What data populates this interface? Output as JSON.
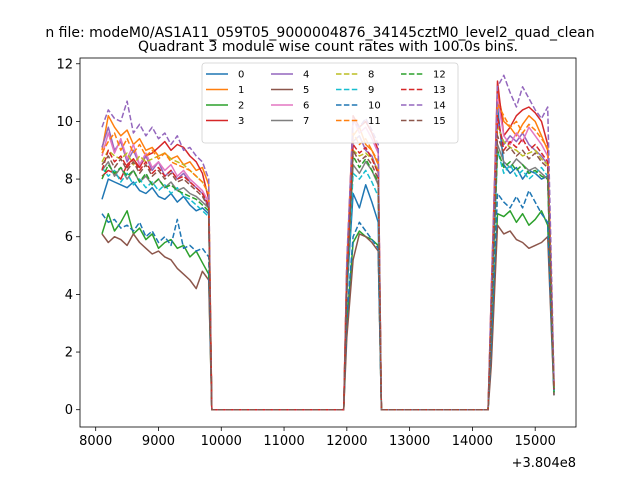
{
  "chart_data": {
    "type": "line",
    "suptitle": "n file: modeM0/AS1A11_059T05_9000004876_34145cztM0_level2_quad_clean",
    "title": "Quadrant 3 module wise count rates with 100.0s bins.",
    "xlabel": "",
    "ylabel": "",
    "x_offset_label": "+3.804e8",
    "xlim": [
      7750,
      15650
    ],
    "ylim": [
      -0.6,
      12.2
    ],
    "xticks": [
      8000,
      9000,
      10000,
      11000,
      12000,
      13000,
      14000,
      15000
    ],
    "yticks": [
      0,
      2,
      4,
      6,
      8,
      10,
      12
    ],
    "grid": false,
    "legend": {
      "placement": "top-center",
      "columns": 4
    },
    "x": [
      8100,
      8200,
      8300,
      8400,
      8500,
      8600,
      8700,
      8800,
      8900,
      9000,
      9100,
      9200,
      9300,
      9400,
      9500,
      9600,
      9700,
      9800,
      9850,
      11950,
      12000,
      12100,
      12200,
      12300,
      12400,
      12500,
      12550,
      14250,
      14300,
      14400,
      14500,
      14600,
      14700,
      14800,
      14900,
      15000,
      15100,
      15200,
      15300
    ],
    "series": [
      {
        "name": "0",
        "color": "#1f77b4",
        "style": "solid",
        "values": [
          7.3,
          8.0,
          7.9,
          7.8,
          7.7,
          7.9,
          7.6,
          7.5,
          7.7,
          7.4,
          7.3,
          7.5,
          7.2,
          7.4,
          7.1,
          6.9,
          7.0,
          6.8,
          0,
          0,
          4.0,
          7.5,
          7.0,
          7.8,
          7.2,
          6.5,
          0,
          0,
          3.0,
          10.5,
          8.5,
          8.2,
          8.4,
          8.0,
          8.3,
          8.2,
          8.0,
          8.1,
          0.5
        ]
      },
      {
        "name": "1",
        "color": "#ff7f0e",
        "style": "solid",
        "values": [
          9.0,
          10.2,
          9.8,
          9.5,
          9.7,
          9.2,
          9.4,
          9.0,
          9.1,
          8.8,
          8.9,
          8.7,
          8.8,
          8.5,
          8.6,
          8.3,
          8.4,
          7.8,
          0,
          0,
          5.0,
          9.5,
          9.8,
          9.2,
          9.0,
          8.5,
          0,
          0,
          3.5,
          11.0,
          10.0,
          9.8,
          9.5,
          9.9,
          10.2,
          10.0,
          9.5,
          9.0,
          0.8
        ]
      },
      {
        "name": "2",
        "color": "#2ca02c",
        "style": "solid",
        "values": [
          6.1,
          6.8,
          6.2,
          6.5,
          6.9,
          6.1,
          6.3,
          5.9,
          6.1,
          5.6,
          5.8,
          5.9,
          5.6,
          5.7,
          5.3,
          5.5,
          5.1,
          4.7,
          0,
          0,
          3.0,
          5.8,
          6.2,
          6.0,
          5.9,
          5.7,
          0,
          0,
          2.0,
          6.8,
          6.7,
          6.9,
          6.5,
          6.8,
          6.4,
          6.6,
          6.9,
          6.4,
          0.6
        ]
      },
      {
        "name": "3",
        "color": "#d62728",
        "style": "solid",
        "values": [
          8.1,
          8.3,
          8.2,
          8.0,
          8.5,
          8.7,
          8.4,
          8.8,
          8.9,
          9.1,
          9.3,
          9.0,
          9.2,
          9.1,
          8.8,
          8.6,
          8.2,
          7.3,
          0,
          0,
          5.0,
          10.2,
          9.8,
          10.0,
          9.6,
          9.0,
          0,
          0,
          4.0,
          11.4,
          9.5,
          9.8,
          10.2,
          10.4,
          10.5,
          10.3,
          10.0,
          9.2,
          0.9
        ]
      },
      {
        "name": "4",
        "color": "#9467bd",
        "style": "solid",
        "values": [
          9.1,
          9.8,
          9.0,
          9.3,
          8.6,
          9.0,
          8.5,
          8.8,
          8.3,
          8.6,
          8.1,
          8.3,
          8.0,
          8.2,
          7.9,
          7.7,
          7.5,
          7.0,
          0,
          0,
          4.5,
          9.3,
          9.5,
          9.0,
          8.8,
          8.2,
          0,
          0,
          3.5,
          10.0,
          9.2,
          9.5,
          9.3,
          9.6,
          9.2,
          9.0,
          8.8,
          8.5,
          0.7
        ]
      },
      {
        "name": "5",
        "color": "#8c564b",
        "style": "solid",
        "values": [
          6.1,
          5.8,
          6.0,
          5.9,
          5.7,
          6.1,
          5.8,
          5.6,
          5.4,
          5.5,
          5.3,
          5.2,
          4.9,
          4.7,
          4.5,
          4.2,
          4.8,
          4.5,
          0,
          0,
          2.5,
          5.2,
          6.1,
          6.0,
          5.8,
          5.5,
          0,
          0,
          1.5,
          6.4,
          6.1,
          6.2,
          5.9,
          5.8,
          5.6,
          5.7,
          5.8,
          6.0,
          0.5
        ]
      },
      {
        "name": "6",
        "color": "#e377c2",
        "style": "solid",
        "values": [
          8.8,
          9.6,
          8.9,
          9.4,
          8.7,
          9.2,
          8.5,
          8.9,
          8.4,
          8.6,
          8.3,
          8.5,
          8.1,
          8.3,
          8.0,
          7.8,
          7.6,
          7.2,
          0,
          0,
          4.5,
          10.1,
          9.6,
          9.8,
          9.4,
          8.9,
          0,
          0,
          3.5,
          10.8,
          9.5,
          9.2,
          9.6,
          9.3,
          9.8,
          9.5,
          9.2,
          8.8,
          0.8
        ]
      },
      {
        "name": "7",
        "color": "#7f7f7f",
        "style": "solid",
        "values": [
          8.3,
          8.6,
          8.1,
          8.4,
          8.0,
          8.3,
          7.9,
          8.1,
          7.8,
          8.0,
          7.7,
          7.9,
          7.6,
          7.7,
          7.5,
          7.4,
          7.2,
          7.0,
          0,
          0,
          4.2,
          8.5,
          8.2,
          8.6,
          8.3,
          7.8,
          0,
          0,
          3.0,
          9.2,
          8.6,
          8.4,
          8.7,
          8.5,
          8.3,
          8.4,
          8.2,
          8.0,
          0.6
        ]
      },
      {
        "name": "8",
        "color": "#bcbd22",
        "style": "dashed",
        "values": [
          8.6,
          9.0,
          8.8,
          8.7,
          8.9,
          8.5,
          8.8,
          8.6,
          8.7,
          8.8,
          8.9,
          8.7,
          8.6,
          8.5,
          8.3,
          8.1,
          7.9,
          7.5,
          0,
          0,
          4.5,
          9.0,
          8.8,
          8.9,
          8.7,
          8.3,
          0,
          0,
          3.2,
          9.8,
          9.3,
          9.1,
          9.0,
          8.8,
          8.9,
          9.0,
          8.7,
          8.5,
          0.7
        ]
      },
      {
        "name": "9",
        "color": "#17becf",
        "style": "dashed",
        "values": [
          8.4,
          8.1,
          8.3,
          7.9,
          8.2,
          7.8,
          8.0,
          7.7,
          7.9,
          7.6,
          7.8,
          7.5,
          7.7,
          7.4,
          7.3,
          7.1,
          6.9,
          6.7,
          0,
          0,
          4.0,
          8.2,
          8.0,
          8.3,
          7.9,
          7.4,
          0,
          0,
          2.9,
          9.0,
          8.2,
          8.5,
          8.1,
          8.3,
          8.0,
          8.2,
          8.4,
          8.1,
          0.6
        ]
      },
      {
        "name": "10",
        "color": "#1f77b4",
        "style": "dashed",
        "values": [
          6.8,
          6.5,
          6.6,
          6.3,
          6.4,
          6.2,
          6.5,
          6.0,
          6.2,
          5.8,
          6.0,
          5.7,
          6.6,
          5.6,
          5.7,
          5.5,
          5.6,
          5.3,
          0,
          0,
          3.2,
          6.0,
          6.5,
          6.2,
          5.9,
          5.6,
          0,
          0,
          2.2,
          7.5,
          7.2,
          7.0,
          7.4,
          7.0,
          7.6,
          7.2,
          6.8,
          6.5,
          0.6
        ]
      },
      {
        "name": "11",
        "color": "#ff7f0e",
        "style": "dashed",
        "values": [
          8.9,
          9.3,
          9.6,
          9.0,
          9.4,
          8.9,
          9.2,
          8.8,
          9.0,
          8.7,
          8.9,
          8.6,
          8.5,
          8.4,
          8.3,
          8.1,
          7.9,
          7.5,
          0,
          0,
          4.8,
          9.6,
          9.2,
          9.4,
          9.0,
          8.6,
          0,
          0,
          3.6,
          10.6,
          10.2,
          9.8,
          10.0,
          9.6,
          9.9,
          9.7,
          9.4,
          9.1,
          0.8
        ]
      },
      {
        "name": "12",
        "color": "#2ca02c",
        "style": "dashed",
        "values": [
          8.0,
          8.5,
          8.2,
          8.4,
          8.1,
          8.3,
          7.9,
          8.2,
          7.8,
          8.0,
          7.7,
          7.8,
          7.6,
          7.5,
          7.4,
          7.3,
          7.1,
          6.9,
          0,
          0,
          4.2,
          8.8,
          8.4,
          8.7,
          8.3,
          7.9,
          0,
          0,
          3.0,
          9.0,
          8.4,
          8.6,
          8.3,
          8.5,
          8.2,
          8.3,
          8.1,
          8.0,
          0.6
        ]
      },
      {
        "name": "13",
        "color": "#d62728",
        "style": "dashed",
        "values": [
          8.3,
          9.0,
          8.6,
          8.8,
          8.4,
          8.7,
          8.3,
          8.6,
          8.2,
          8.4,
          8.1,
          8.3,
          8.0,
          8.1,
          7.9,
          7.7,
          7.5,
          7.1,
          0,
          0,
          4.4,
          9.2,
          8.9,
          9.1,
          8.7,
          8.2,
          0,
          0,
          3.3,
          10.2,
          9.0,
          9.3,
          9.1,
          9.4,
          9.0,
          9.2,
          8.9,
          8.6,
          0.7
        ]
      },
      {
        "name": "14",
        "color": "#9467bd",
        "style": "dashed",
        "values": [
          9.8,
          10.4,
          10.1,
          10.0,
          10.7,
          9.6,
          9.9,
          9.5,
          9.8,
          9.4,
          9.6,
          9.2,
          9.5,
          9.0,
          9.1,
          8.8,
          8.6,
          8.0,
          0,
          0,
          5.2,
          10.0,
          9.8,
          10.1,
          9.7,
          9.2,
          0,
          0,
          4.0,
          11.2,
          11.6,
          11.0,
          10.5,
          11.2,
          10.8,
          10.4,
          10.1,
          10.5,
          1.0
        ]
      },
      {
        "name": "15",
        "color": "#8c564b",
        "style": "dashed",
        "values": [
          8.5,
          8.8,
          8.4,
          8.7,
          8.3,
          8.6,
          8.2,
          8.5,
          8.1,
          8.3,
          8.0,
          8.2,
          7.9,
          8.0,
          7.8,
          7.6,
          7.4,
          7.0,
          0,
          0,
          4.3,
          9.0,
          8.6,
          8.8,
          8.5,
          8.0,
          0,
          0,
          3.1,
          9.5,
          8.9,
          9.1,
          8.8,
          9.0,
          8.7,
          8.9,
          8.6,
          8.4,
          0.7
        ]
      }
    ]
  }
}
